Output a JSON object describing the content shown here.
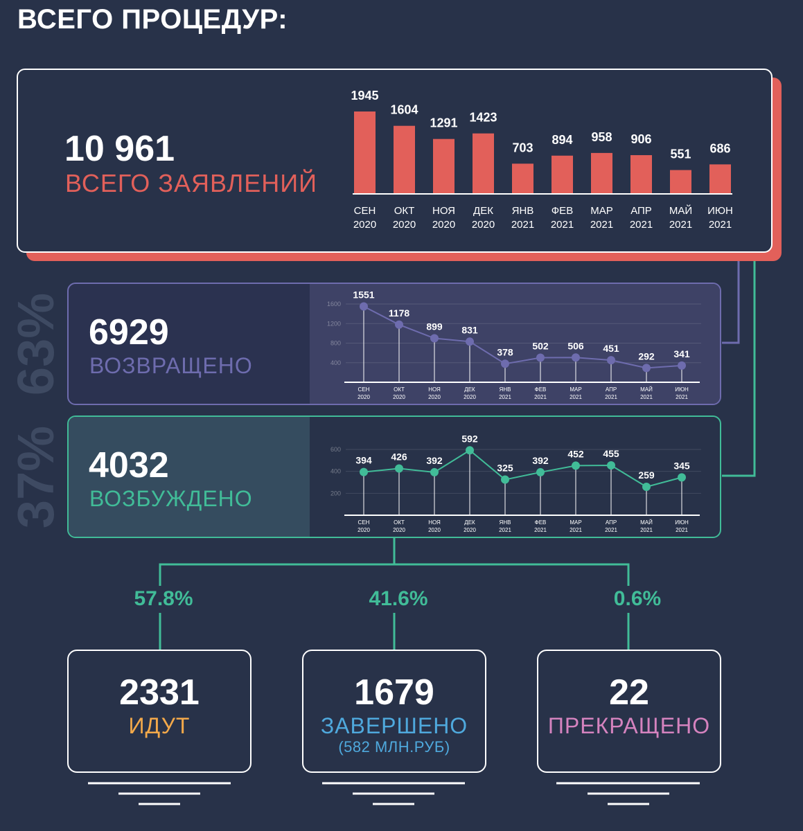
{
  "title": "ВСЕГО ПРОЦЕДУР:",
  "colors": {
    "background": "#283249",
    "total": "#e2605a",
    "returned": "#6e6cae",
    "excited": "#41bc98",
    "ongoing": "#f3a94a",
    "completed": "#4fa9dd",
    "terminated": "#d583bf"
  },
  "total": {
    "value": "10 961",
    "label": "ВСЕГО ЗАЯВЛЕНИЙ"
  },
  "returned": {
    "value": "6929",
    "label": "ВОЗВРАЩЕНО",
    "share": "63%"
  },
  "excited": {
    "value": "4032",
    "label": "ВОЗБУЖДЕНО",
    "share": "37%"
  },
  "outcomes": [
    {
      "pct": "57.8%",
      "value": "2331",
      "label": "ИДУТ",
      "sub": ""
    },
    {
      "pct": "41.6%",
      "value": "1679",
      "label": "ЗАВЕРШЕНО",
      "sub": "(582 МЛН.РУБ)"
    },
    {
      "pct": "0.6%",
      "value": "22",
      "label": "ПРЕКРАЩЕНО",
      "sub": ""
    }
  ],
  "chart_data": [
    {
      "type": "bar",
      "categories": [
        "СЕН 2020",
        "ОКТ 2020",
        "НОЯ 2020",
        "ДЕК 2020",
        "ЯНВ 2021",
        "ФЕВ 2021",
        "МАР 2021",
        "АПР 2021",
        "МАЙ 2021",
        "ИЮН 2021"
      ],
      "values": [
        1945,
        1604,
        1291,
        1423,
        703,
        894,
        958,
        906,
        551,
        686
      ],
      "ylim": [
        0,
        1945
      ],
      "grid": false
    },
    {
      "type": "line",
      "categories": [
        "СЕН 2020",
        "ОКТ 2020",
        "НОЯ 2020",
        "ДЕК 2020",
        "ЯНВ 2021",
        "ФЕВ 2021",
        "МАР 2021",
        "АПР 2021",
        "МАЙ 2021",
        "ИЮН 2021"
      ],
      "values": [
        1551,
        1178,
        899,
        831,
        378,
        502,
        506,
        451,
        292,
        341
      ],
      "yticks": [
        400,
        800,
        1200,
        1600
      ],
      "ylim": [
        0,
        1600
      ],
      "grid": true
    },
    {
      "type": "line",
      "categories": [
        "СЕН 2020",
        "ОКТ 2020",
        "НОЯ 2020",
        "ДЕК 2020",
        "ЯНВ 2021",
        "ФЕВ 2021",
        "МАР 2021",
        "АПР 2021",
        "МАЙ 2021",
        "ИЮН 2021"
      ],
      "values": [
        394,
        426,
        392,
        592,
        325,
        392,
        452,
        455,
        259,
        345
      ],
      "yticks": [
        200,
        400,
        600
      ],
      "ylim": [
        0,
        600
      ],
      "grid": true
    }
  ]
}
